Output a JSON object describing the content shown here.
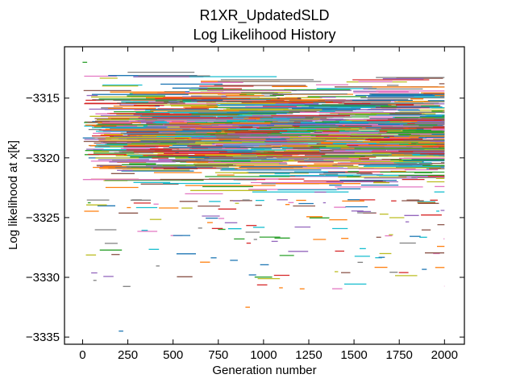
{
  "chart_data": {
    "type": "line",
    "title": "R1XR_UpdatedSLD",
    "subtitle": "Log Likelihood History",
    "xlabel": "Generation number",
    "ylabel": "Log likelihood at x[k]",
    "xlim": [
      -100,
      2110
    ],
    "ylim": [
      -3335.6,
      -3310.7
    ],
    "x_ticks": [
      0,
      250,
      500,
      750,
      1000,
      1250,
      1500,
      1750,
      2000
    ],
    "y_ticks": [
      -3315,
      -3320,
      -3325,
      -3330,
      -3335
    ],
    "x_tick_labels": [
      "0",
      "250",
      "500",
      "750",
      "1000",
      "1250",
      "1500",
      "1750",
      "2000"
    ],
    "y_tick_labels": [
      "−3315",
      "−3320",
      "−3325",
      "−3330",
      "−3335"
    ],
    "generations": [
      0,
      2000
    ],
    "band": {
      "dense_range": [
        -3323.5,
        -3312.5
      ],
      "center": -3318,
      "sparse_range": [
        -3331,
        -3323.5
      ],
      "outliers": [
        -3334.5,
        -3332.5,
        -3312
      ]
    },
    "series_colors": [
      "#1f77b4",
      "#ff7f0e",
      "#2ca02c",
      "#d62728",
      "#9467bd",
      "#8c564b",
      "#e377c2",
      "#7f7f7f",
      "#bcbd22",
      "#17becf"
    ],
    "grid": false,
    "legend": "none"
  }
}
